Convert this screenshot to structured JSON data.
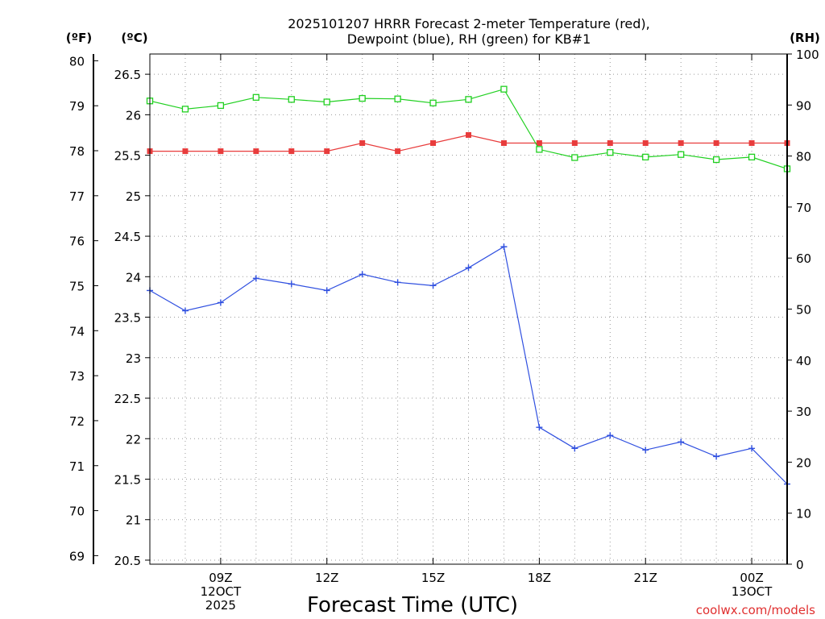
{
  "chart_data": {
    "type": "line",
    "title": [
      "2025101207 HRRR Forecast 2-meter Temperature (red),",
      "Dewpoint (blue), RH (green) for KB#1"
    ],
    "xlabel": "Forecast Time (UTC)",
    "credit": "coolwx.com/models",
    "units": {
      "fahrenheit": "(ºF)",
      "celsius": "(ºC)",
      "rh": "(RH)"
    },
    "x_hours_utc": [
      7,
      8,
      9,
      10,
      11,
      12,
      13,
      14,
      15,
      16,
      17,
      18,
      19,
      20,
      21,
      22,
      23,
      24,
      25
    ],
    "xlim": [
      7,
      25
    ],
    "x_ticks": [
      {
        "hour": 9,
        "lines": [
          "09Z",
          "12OCT",
          "2025"
        ]
      },
      {
        "hour": 12,
        "lines": [
          "12Z"
        ]
      },
      {
        "hour": 15,
        "lines": [
          "15Z"
        ]
      },
      {
        "hour": 18,
        "lines": [
          "18Z"
        ]
      },
      {
        "hour": 21,
        "lines": [
          "21Z"
        ]
      },
      {
        "hour": 24,
        "lines": [
          "00Z",
          "13OCT"
        ]
      }
    ],
    "celsius_axis": {
      "range": [
        20.45,
        26.75
      ],
      "ticks": [
        "20.5",
        "21",
        "21.5",
        "22",
        "22.5",
        "23",
        "23.5",
        "24",
        "24.5",
        "25",
        "25.5",
        "26",
        "26.5"
      ]
    },
    "fahrenheit_axis": {
      "ticks": [
        "69",
        "70",
        "71",
        "72",
        "73",
        "74",
        "75",
        "76",
        "77",
        "78",
        "79",
        "80"
      ]
    },
    "rh_axis": {
      "range": [
        0,
        100
      ],
      "ticks": [
        "0",
        "10",
        "20",
        "30",
        "40",
        "50",
        "60",
        "70",
        "80",
        "90",
        "100"
      ]
    },
    "series": [
      {
        "name": "Temperature",
        "color": "#e83c3c",
        "axis": "celsius",
        "marker": "filled-square",
        "values": [
          25.55,
          25.55,
          25.55,
          25.55,
          25.55,
          25.55,
          25.65,
          25.55,
          25.65,
          25.75,
          25.65,
          25.65,
          25.65,
          25.65,
          25.65,
          25.65,
          25.65,
          25.65,
          25.65
        ]
      },
      {
        "name": "Dewpoint",
        "color": "#3050e0",
        "axis": "celsius",
        "marker": "plus",
        "values": [
          23.83,
          23.58,
          23.68,
          23.98,
          23.91,
          23.83,
          24.03,
          23.93,
          23.89,
          24.11,
          24.37,
          22.14,
          21.88,
          22.04,
          21.86,
          21.96,
          21.78,
          21.88,
          21.44
        ]
      },
      {
        "name": "RH",
        "color": "#20d020",
        "axis": "rh",
        "marker": "open-square",
        "values": [
          90.8,
          89.2,
          89.9,
          91.5,
          91.1,
          90.6,
          91.3,
          91.2,
          90.4,
          91.1,
          93.1,
          81.3,
          79.7,
          80.7,
          79.8,
          80.3,
          79.3,
          79.8,
          77.5
        ]
      }
    ]
  }
}
